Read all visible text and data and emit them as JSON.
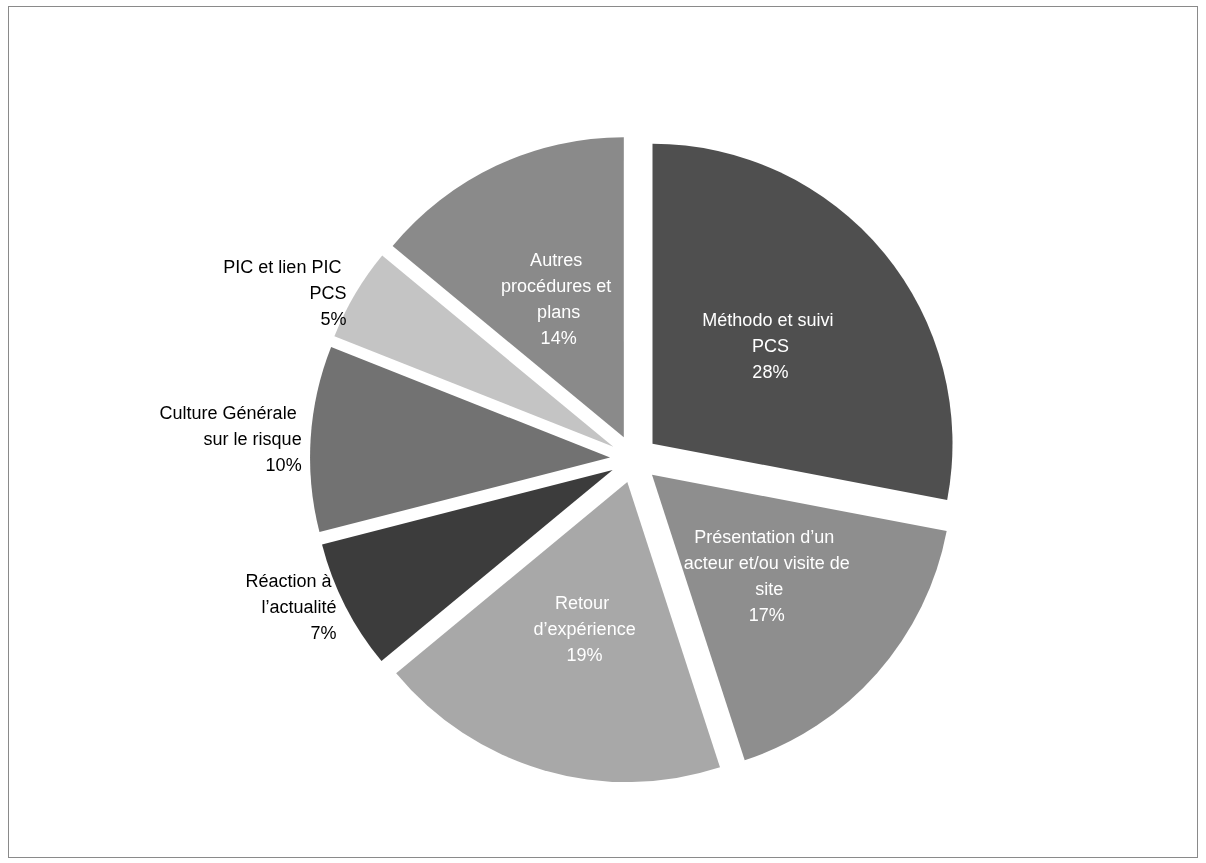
{
  "chart_data": {
    "type": "pie",
    "categories": [
      "Méthodo et suivi PCS",
      "Présentation d’un acteur et/ou visite de site",
      "Retour d’expérience",
      "Réaction à l’actualité",
      "Culture Générale sur le risque",
      "PIC et lien PIC PCS",
      "Autres procédures et plans"
    ],
    "values": [
      28,
      17,
      19,
      7,
      10,
      5,
      14
    ],
    "colors": [
      "#4f4f4f",
      "#8e8e8e",
      "#a8a8a8",
      "#3c3c3c",
      "#727272",
      "#c4c4c4",
      "#8a8a8a"
    ],
    "value_labels": [
      "28%",
      "17%",
      "19%",
      "7%",
      "10%",
      "5%",
      "14%"
    ],
    "legend": false
  }
}
